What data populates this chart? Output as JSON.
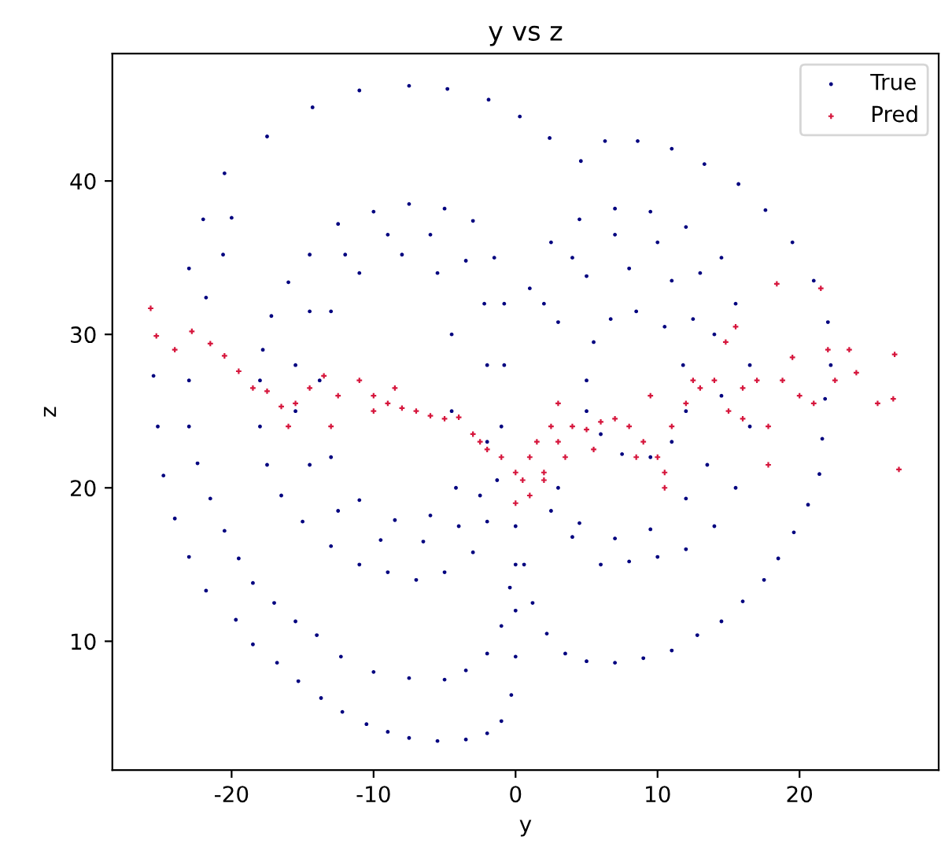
{
  "chart_data": {
    "type": "scatter",
    "title": "y vs z",
    "xlabel": "y",
    "ylabel": "z",
    "xlim": [
      -28.4,
      29.8
    ],
    "ylim": [
      1.6,
      48.3
    ],
    "xticks": [
      -20,
      -10,
      0,
      10,
      20
    ],
    "yticks": [
      10,
      20,
      30,
      40
    ],
    "grid": false,
    "legend": "top right",
    "series": [
      {
        "name": "True",
        "color": "#00007f",
        "marker": "circle",
        "x": [
          -25.5,
          -25.2,
          -24.8,
          -24,
          -23,
          -21.8,
          -19.7,
          -18.5,
          -16.8,
          -15.3,
          -13.7,
          -12.2,
          -10.5,
          -9,
          -7.5,
          -5.5,
          -3.5,
          -2,
          -1,
          -0.3,
          0,
          0,
          0,
          0,
          -23,
          -22,
          -20.5,
          -17.5,
          -14.3,
          -11,
          -7.5,
          -4.8,
          -1.9,
          0.3,
          2.4,
          4.6,
          6.3,
          8.6,
          11,
          13.3,
          15.7,
          17.6,
          19.5,
          21,
          22,
          22.2,
          21.8,
          21.6,
          21.4,
          20.6,
          19.6,
          18.5,
          17.5,
          16,
          14.5,
          12.8,
          11,
          9,
          7,
          5,
          3.5,
          2.2,
          1.2,
          0.6,
          -20,
          -20.6,
          -21.8,
          -23,
          -23,
          -22.4,
          -21.5,
          -20.5,
          -19.5,
          -18.5,
          -17,
          -15.5,
          -14,
          -12.3,
          -10,
          -7.5,
          -5,
          -3.5,
          -2,
          -1,
          -0.4,
          -18,
          -18,
          -17.5,
          -16.5,
          -15,
          -13,
          -11,
          -9,
          -7,
          -5,
          -3,
          -2,
          -1.3,
          -1,
          -0.8,
          -0.8,
          -1.5,
          -3,
          -5,
          -7.5,
          -10,
          -12.5,
          -14.5,
          -16,
          -17.2,
          -17.8,
          -14.5,
          -15.5,
          -15.5,
          -14.5,
          -12.5,
          -9.5,
          -6.5,
          -4,
          -2.5,
          -2,
          -2,
          -2.2,
          -3.5,
          -6,
          -9,
          -12,
          -13,
          -13.8,
          -13,
          -11,
          -8.5,
          -6,
          -4.2,
          -4.5,
          -4.5,
          -5.5,
          -8,
          -11,
          1,
          2.5,
          4.5,
          7,
          9.5,
          12,
          14.5,
          15.5,
          16.5,
          16.5,
          15.5,
          14,
          12,
          10,
          8,
          6,
          4,
          2.5,
          2,
          4,
          7,
          10,
          13,
          14,
          14.5,
          13.5,
          12,
          9.5,
          7,
          4.5,
          3,
          5,
          5.5,
          6.7,
          8.5,
          10.5,
          11.8,
          12,
          11,
          9.5,
          7.5,
          6,
          5,
          3,
          5,
          8,
          11,
          12.5
        ],
        "values": [
          27.3,
          24,
          20.8,
          18,
          15.5,
          13.3,
          11.4,
          9.8,
          8.6,
          7.4,
          6.3,
          5.4,
          4.6,
          4.1,
          3.7,
          3.5,
          3.6,
          4,
          4.8,
          6.5,
          9,
          12,
          15,
          17.5,
          34.3,
          37.5,
          40.5,
          42.9,
          44.8,
          45.9,
          46.2,
          46,
          45.3,
          44.2,
          42.8,
          41.3,
          42.6,
          42.6,
          42.1,
          41.1,
          39.8,
          38.1,
          36,
          33.5,
          30.8,
          28,
          25.8,
          23.2,
          20.9,
          18.9,
          17.1,
          15.4,
          14,
          12.6,
          11.3,
          10.4,
          9.4,
          8.9,
          8.6,
          8.7,
          9.2,
          10.5,
          12.5,
          15,
          37.6,
          35.2,
          32.4,
          27,
          24,
          21.6,
          19.3,
          17.2,
          15.4,
          13.8,
          12.5,
          11.3,
          10.4,
          9,
          8,
          7.6,
          7.5,
          8.1,
          9.2,
          11,
          13.5,
          27,
          24,
          21.5,
          19.5,
          17.8,
          16.2,
          15,
          14.5,
          14,
          14.5,
          15.8,
          17.8,
          20.5,
          24,
          28,
          32,
          35,
          37.4,
          38.2,
          38.5,
          38,
          37.2,
          35.2,
          33.4,
          31.2,
          29,
          31.5,
          28,
          25,
          21.5,
          18.5,
          16.6,
          16.5,
          17.5,
          19.5,
          23,
          28,
          32,
          34.8,
          36.5,
          36.5,
          35.2,
          31.5,
          27,
          22,
          19.2,
          17.9,
          18.2,
          20,
          25,
          30,
          34,
          35.2,
          34,
          33,
          36,
          37.5,
          38.2,
          38,
          37,
          35,
          32,
          28,
          24,
          20,
          17.5,
          16,
          15.5,
          15.2,
          15,
          16.8,
          18.5,
          32,
          35,
          36.5,
          36,
          34,
          30,
          26,
          21.5,
          19.3,
          17.3,
          16.7,
          17.7,
          20,
          27,
          29.5,
          31,
          31.5,
          30.5,
          28,
          25,
          23,
          22,
          22.2,
          23.5,
          25,
          30.8,
          33.8,
          34.3,
          33.5,
          31
        ]
      },
      {
        "name": "Pred",
        "color": "#d6163c",
        "marker": "cross",
        "x": [
          -25.7,
          -25.3,
          -24,
          -22.8,
          -21.5,
          -20.5,
          -19.5,
          -18.5,
          -17.5,
          -16.5,
          -15.5,
          -14.5,
          -13.5,
          -12.5,
          -11,
          -10,
          -9,
          -8,
          -7,
          -6,
          -5,
          -4,
          -3,
          -2.5,
          -2,
          -1,
          0,
          0,
          0.5,
          1,
          1.5,
          2,
          2.5,
          3,
          3,
          3.5,
          4,
          5,
          6,
          7,
          8,
          9,
          9.5,
          10,
          10.5,
          10.5,
          11,
          12,
          12.5,
          13,
          14,
          14.8,
          15.5,
          15,
          16,
          17,
          17.8,
          17.8,
          18.4,
          18.8,
          19.5,
          20,
          21,
          21.5,
          22,
          22.5,
          23.5,
          24,
          25.5,
          26.6,
          26.7,
          27,
          -13,
          -10,
          -8.5,
          -16,
          2,
          1,
          5.5,
          8.5,
          16
        ],
        "values": [
          31.7,
          29.9,
          29,
          30.2,
          29.4,
          28.6,
          27.6,
          26.5,
          26.3,
          25.3,
          25.5,
          26.5,
          27.3,
          26,
          27,
          26,
          25.5,
          25.2,
          25,
          24.7,
          24.5,
          24.6,
          23.5,
          23,
          22.5,
          22,
          21,
          19,
          20.5,
          22,
          23,
          21,
          24,
          23,
          25.5,
          22,
          24,
          23.8,
          24.3,
          24.5,
          24,
          23,
          26,
          22,
          21,
          20,
          24,
          25.5,
          27,
          26.5,
          27,
          29.5,
          30.5,
          25,
          26.5,
          27,
          24,
          21.5,
          33.3,
          27,
          28.5,
          26,
          25.5,
          33,
          29,
          27,
          29,
          27.5,
          25.5,
          25.8,
          28.7,
          21.2,
          24,
          25,
          26.5,
          24,
          20.5,
          19.5,
          22.5,
          22,
          24.5
        ]
      }
    ]
  }
}
